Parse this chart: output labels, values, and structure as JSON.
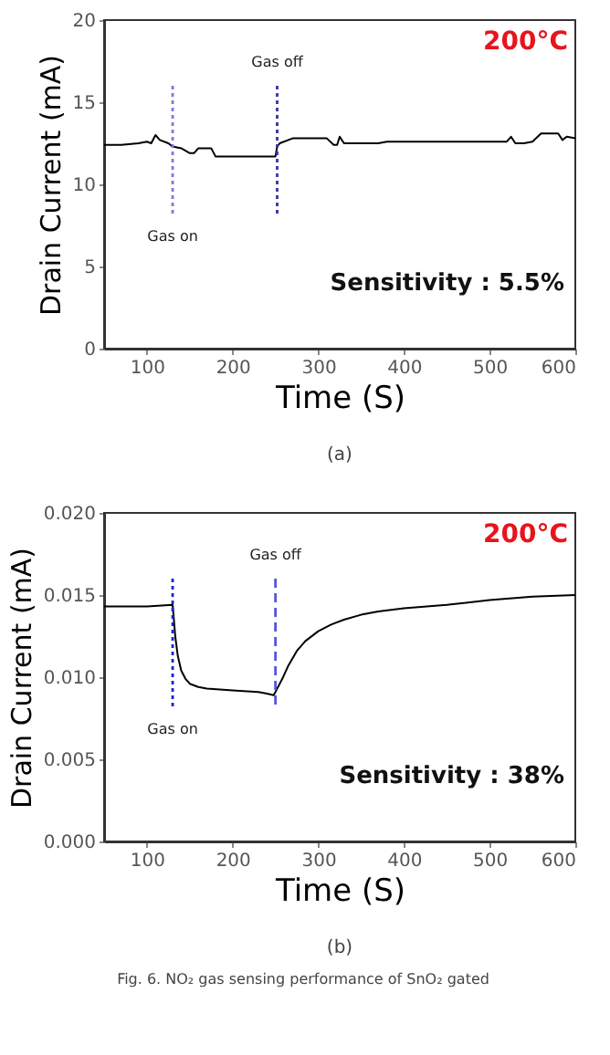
{
  "chart_data": [
    {
      "type": "line",
      "xlabel": "Time (S)",
      "ylabel": "Drain Current (mA)",
      "x": [
        50,
        70,
        90,
        100,
        105,
        110,
        115,
        125,
        130,
        140,
        150,
        155,
        160,
        175,
        180,
        200,
        250,
        252,
        255,
        270,
        300,
        310,
        318,
        322,
        325,
        330,
        350,
        370,
        380,
        450,
        520,
        525,
        530,
        540,
        550,
        560,
        580,
        585,
        590,
        600
      ],
      "series": [
        {
          "color": "#000000",
          "values": [
            12.4,
            12.4,
            12.5,
            12.6,
            12.5,
            13.0,
            12.7,
            12.5,
            12.3,
            12.2,
            11.9,
            11.9,
            12.2,
            12.2,
            11.7,
            11.7,
            11.7,
            12.3,
            12.5,
            12.8,
            12.8,
            12.8,
            12.4,
            12.4,
            12.9,
            12.5,
            12.5,
            12.5,
            12.6,
            12.6,
            12.6,
            12.9,
            12.5,
            12.5,
            12.6,
            13.1,
            13.1,
            12.7,
            12.9,
            12.8
          ]
        }
      ],
      "xlim": [
        50,
        600
      ],
      "xticks": [
        100,
        200,
        300,
        400,
        500,
        600
      ],
      "ylim": [
        0,
        20
      ],
      "yticks": [
        0,
        5,
        10,
        15,
        20
      ],
      "ref_lines": [
        {
          "axis": "x",
          "value": 130,
          "label": "Gas on",
          "color": "#7b7bdc",
          "line_style": "dotted"
        },
        {
          "axis": "x",
          "value": 252,
          "label": "Gas off",
          "color": "#3333aa",
          "line_style": "dotted"
        }
      ],
      "annotations": [
        "200°C",
        "Sensitivity : 5.5%",
        "(a)"
      ]
    },
    {
      "type": "line",
      "xlabel": "Time (S)",
      "ylabel": "Drain Current (mA)",
      "x": [
        50,
        100,
        130,
        131,
        133,
        136,
        140,
        145,
        150,
        160,
        170,
        200,
        230,
        240,
        248,
        252,
        258,
        265,
        275,
        285,
        300,
        315,
        330,
        350,
        370,
        400,
        450,
        500,
        550,
        600
      ],
      "series": [
        {
          "color": "#000000",
          "values": [
            0.0143,
            0.0143,
            0.0144,
            0.0138,
            0.0125,
            0.0113,
            0.0104,
            0.0099,
            0.0096,
            0.0094,
            0.0093,
            0.0092,
            0.0091,
            0.009,
            0.0089,
            0.0093,
            0.0099,
            0.0107,
            0.0116,
            0.0122,
            0.0128,
            0.0132,
            0.0135,
            0.0138,
            0.014,
            0.0142,
            0.0144,
            0.0147,
            0.0149,
            0.015
          ]
        }
      ],
      "xlim": [
        50,
        600
      ],
      "xticks": [
        100,
        200,
        300,
        400,
        500,
        600
      ],
      "ylim": [
        0,
        0.02
      ],
      "yticks": [
        {
          "value": 0,
          "label": "0.000"
        },
        {
          "value": 0.005,
          "label": "0.005"
        },
        {
          "value": 0.01,
          "label": "0.010"
        },
        {
          "value": 0.015,
          "label": "0.015"
        },
        {
          "value": 0.02,
          "label": "0.020"
        }
      ],
      "ref_lines": [
        {
          "axis": "x",
          "value": 130,
          "label": "Gas on",
          "color": "#2222cc",
          "line_style": "dotted"
        },
        {
          "axis": "x",
          "value": 250,
          "label": "Gas off",
          "color": "#5555dd",
          "line_style": "dashed"
        }
      ],
      "annotations": [
        "200°C",
        "Sensitivity : 38%",
        "(b)",
        "Fig. 6. NO₂ gas sensing performance of SnO₂ gated"
      ]
    }
  ]
}
